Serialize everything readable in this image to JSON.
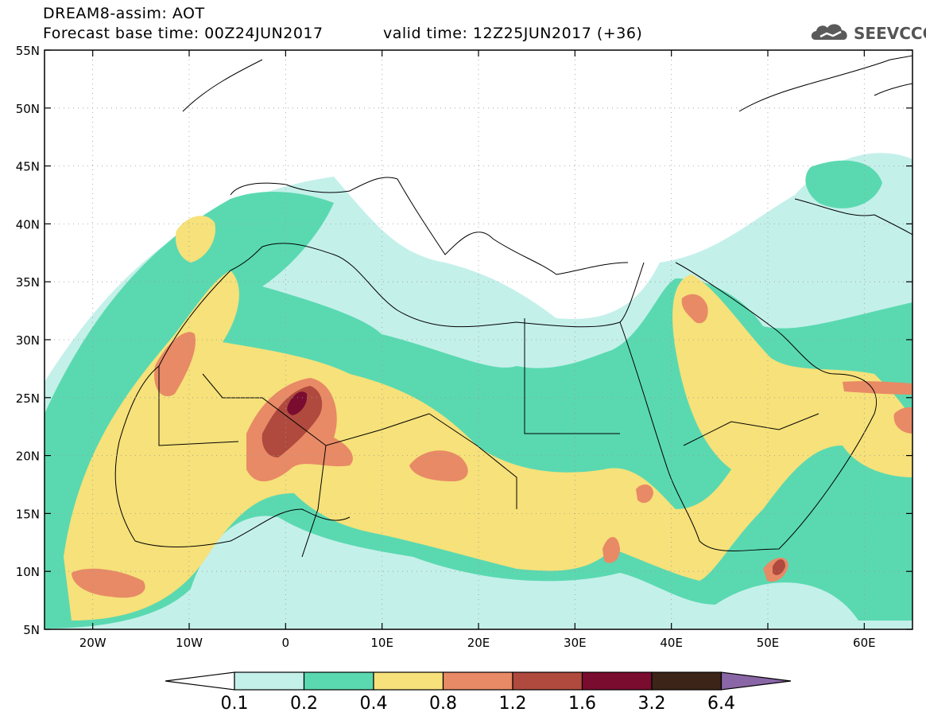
{
  "header": {
    "line1": "DREAM8-assim: AOT",
    "line2": "Forecast base time: 00Z24JUN2017",
    "line3": "valid time: 12Z25JUN2017 (+36)",
    "logo_text": "SEEVCCC"
  },
  "map": {
    "lat_labels": [
      "55N",
      "50N",
      "45N",
      "40N",
      "35N",
      "30N",
      "25N",
      "20N",
      "15N",
      "10N",
      "5N"
    ],
    "lon_labels": [
      "20W",
      "10W",
      "0",
      "10E",
      "20E",
      "30E",
      "40E",
      "50E",
      "60E"
    ],
    "lon_range": [
      -25,
      65
    ],
    "lat_range": [
      5,
      55
    ]
  },
  "legend": {
    "labels": [
      "0.1",
      "0.2",
      "0.4",
      "0.8",
      "1.2",
      "1.6",
      "3.2",
      "6.4"
    ],
    "colors": [
      "#c4f0ea",
      "#5ad9b0",
      "#f6e17a",
      "#e88a66",
      "#b04a3e",
      "#7a0c30",
      "#3c2418"
    ],
    "under_color": "#ffffff",
    "over_color": "#8a66a6"
  },
  "colors": {
    "level1": "#c4f0ea",
    "level2": "#5ad9b0",
    "level3": "#f6e17a",
    "level4": "#e88a66",
    "level5": "#b04a3e",
    "level6": "#7a0c30"
  }
}
